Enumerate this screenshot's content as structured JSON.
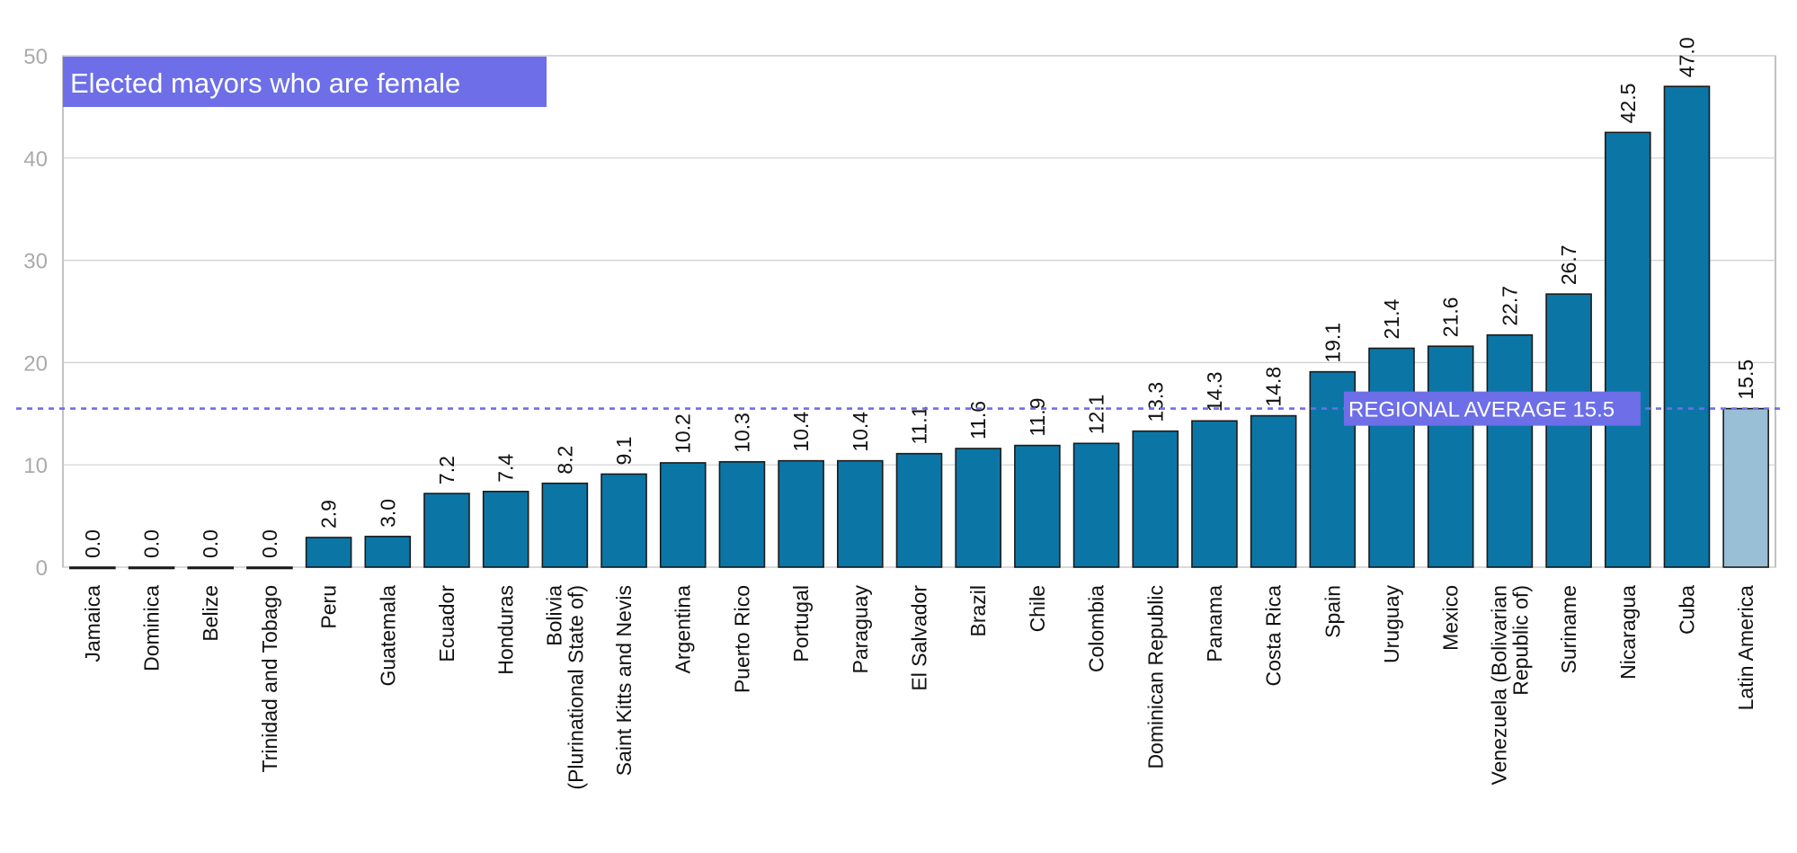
{
  "chart_data": {
    "type": "bar",
    "title": "Elected mayors who are female",
    "xlabel": "",
    "ylabel": "",
    "ylim": [
      0,
      50
    ],
    "yticks": [
      0,
      10,
      20,
      30,
      40,
      50
    ],
    "grid": true,
    "legend": "none",
    "categories": [
      "Jamaica",
      "Dominica",
      "Belize",
      "Trinidad and Tobago",
      "Peru",
      "Guatemala",
      "Ecuador",
      "Honduras",
      "Bolivia (Plurinational State of)",
      "Saint Kitts and Nevis",
      "Argentina",
      "Puerto Rico",
      "Portugal",
      "Paraguay",
      "El Salvador",
      "Brazil",
      "Chile",
      "Colombia",
      "Dominican Republic",
      "Panama",
      "Costa Rica",
      "Spain",
      "Uruguay",
      "Mexico",
      "Venezuela (Bolivarian Republic of)",
      "Suriname",
      "Nicaragua",
      "Cuba",
      "Latin America"
    ],
    "category_lines": [
      [
        "Jamaica"
      ],
      [
        "Dominica"
      ],
      [
        "Belize"
      ],
      [
        "Trinidad and Tobago"
      ],
      [
        "Peru"
      ],
      [
        "Guatemala"
      ],
      [
        "Ecuador"
      ],
      [
        "Honduras"
      ],
      [
        "Bolivia",
        "(Plurinational State of)"
      ],
      [
        "Saint Kitts and Nevis"
      ],
      [
        "Argentina"
      ],
      [
        "Puerto Rico"
      ],
      [
        "Portugal"
      ],
      [
        "Paraguay"
      ],
      [
        "El Salvador"
      ],
      [
        "Brazil"
      ],
      [
        "Chile"
      ],
      [
        "Colombia"
      ],
      [
        "Dominican Republic"
      ],
      [
        "Panama"
      ],
      [
        "Costa Rica"
      ],
      [
        "Spain"
      ],
      [
        "Uruguay"
      ],
      [
        "Mexico"
      ],
      [
        "Venezuela (Bolivarian",
        "Republic of)"
      ],
      [
        "Suriname"
      ],
      [
        "Nicaragua"
      ],
      [
        "Cuba"
      ],
      [
        "Latin America"
      ]
    ],
    "values": [
      0.0,
      0.0,
      0.0,
      0.0,
      2.9,
      3.0,
      7.2,
      7.4,
      8.2,
      9.1,
      10.2,
      10.3,
      10.4,
      10.4,
      11.1,
      11.6,
      11.9,
      12.1,
      13.3,
      14.3,
      14.8,
      19.1,
      21.4,
      21.6,
      22.7,
      26.7,
      42.5,
      47.0,
      15.5
    ],
    "value_labels": [
      "0.0",
      "0.0",
      "0.0",
      "0.0",
      "2.9",
      "3.0",
      "7.2",
      "7.4",
      "8.2",
      "9.1",
      "10.2",
      "10.3",
      "10.4",
      "10.4",
      "11.1",
      "11.6",
      "11.9",
      "12.1",
      "13.3",
      "14.3",
      "14.8",
      "19.1",
      "21.4",
      "21.6",
      "22.7",
      "26.7",
      "42.5",
      "47.0",
      "15.5"
    ],
    "highlight_index": 28,
    "reference_line": {
      "value": 15.5,
      "label": "REGIONAL AVERAGE 15.5"
    },
    "colors": {
      "bar": "#0b76a6",
      "highlight_bar": "#99bfd6",
      "bar_outline": "#1a1a1a",
      "accent": "#6d6ee8",
      "grid": "#cfcfcf",
      "tick_text": "#aaaaaa"
    }
  }
}
